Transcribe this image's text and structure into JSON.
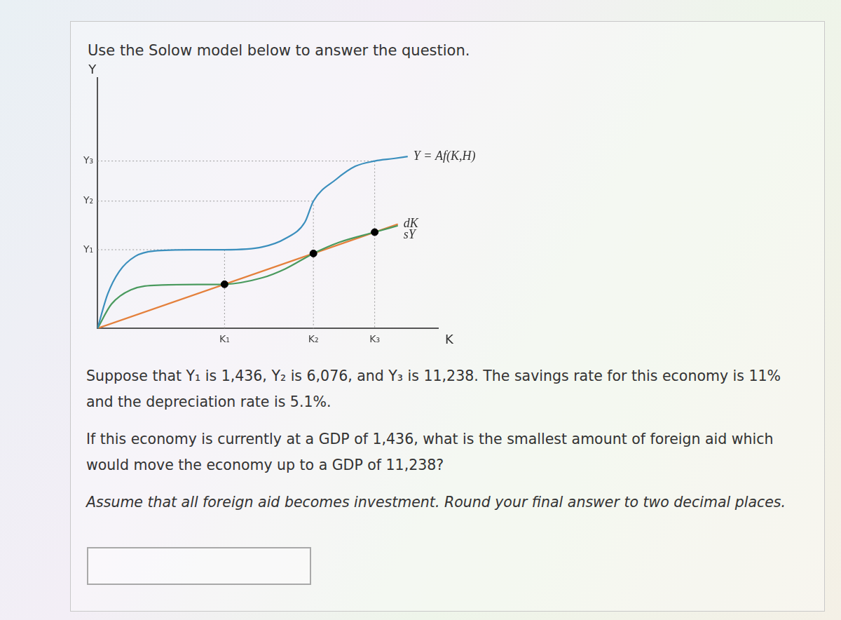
{
  "prompt": "Use the Solow model below to answer the question.",
  "chart_data": {
    "type": "line",
    "xlabel": "K",
    "ylabel": "Y",
    "xlim": [
      0,
      100
    ],
    "ylim": [
      0,
      100
    ],
    "xticks": [
      {
        "value": 37.3,
        "label": "K₁"
      },
      {
        "value": 63.4,
        "label": "K₂"
      },
      {
        "value": 81.4,
        "label": "K₃"
      }
    ],
    "yticks": [
      {
        "value": 31.4,
        "label": "Y₁"
      },
      {
        "value": 50.8,
        "label": "Y₂"
      },
      {
        "value": 66.8,
        "label": "Y₃"
      }
    ],
    "grid": false,
    "series": [
      {
        "name": "Y = Af(K,H)",
        "color": "#3b8fbd",
        "x": [
          0,
          2.95,
          6.4,
          11.1,
          16.6,
          28,
          37.3,
          48.4,
          55.2,
          60.9,
          63.4,
          70,
          75.7,
          81.4,
          87,
          91.1
        ],
        "values": [
          0,
          13.6,
          22.8,
          28.8,
          30.9,
          31.4,
          31.4,
          32.5,
          35.9,
          42.4,
          50.8,
          59.4,
          64.7,
          66.8,
          67.8,
          68.6
        ]
      },
      {
        "name": "sY",
        "color": "#4a9a5e",
        "x": [
          0,
          4.1,
          9.8,
          18.9,
          30.2,
          37.3,
          48.4,
          55.2,
          63.4,
          71.1,
          81.4,
          88.2
        ],
        "values": [
          0,
          9.7,
          15.4,
          17.3,
          17.5,
          17.6,
          20.2,
          23.8,
          29.9,
          34.4,
          38.4,
          41.0
        ]
      },
      {
        "name": "dK",
        "color": "#e4803c",
        "x": [
          0,
          88.2
        ],
        "values": [
          0,
          41.6
        ]
      },
      {
        "type": "scatter",
        "color": "#000000",
        "marker": "circle",
        "x": [
          37.3,
          63.4,
          81.4
        ],
        "values": [
          17.6,
          29.9,
          38.4
        ]
      }
    ]
  },
  "question": [
    "Suppose that Y₁ is 1,436, Y₂ is 6,076, and Y₃ is 11,238. The savings rate for this economy is 11% and the depreciation rate is 5.1%.",
    "If this economy is currently at a GDP of 1,436, what is the smallest amount of foreign aid which would move the economy up to a GDP of 11,238?",
    "Assume that all foreign aid becomes investment. Round your final answer to two decimal places."
  ]
}
